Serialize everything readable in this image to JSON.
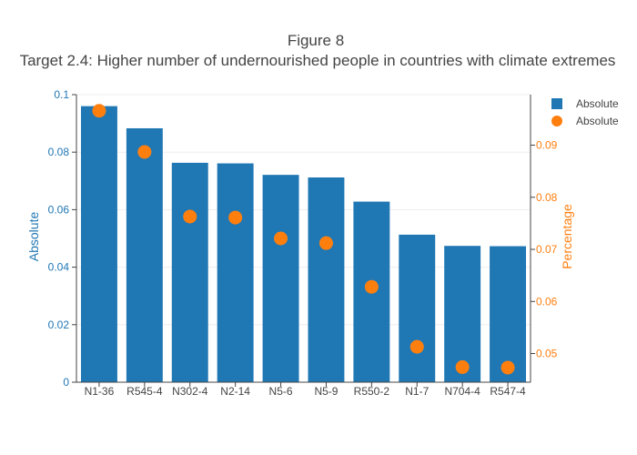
{
  "chart_data": {
    "type": "bar",
    "title": "Figure 8",
    "subtitle": "Target 2.4: Higher number of undernourished people in countries with climate extremes",
    "categories": [
      "N1-36",
      "R545-4",
      "N302-4",
      "N2-14",
      "N5-6",
      "N5-9",
      "R550-2",
      "N1-7",
      "N704-4",
      "R547-4"
    ],
    "series": [
      {
        "name": "Absolute",
        "type": "bar",
        "axis": "left",
        "color": "#1f77b4",
        "values": [
          0.096,
          0.0883,
          0.0763,
          0.0761,
          0.0721,
          0.0712,
          0.0628,
          0.0513,
          0.0474,
          0.0473
        ]
      },
      {
        "name": "Absolute",
        "type": "scatter",
        "axis": "right",
        "color": "#ff7f0e",
        "values": [
          0.0966,
          0.0887,
          0.0763,
          0.0761,
          0.0721,
          0.0712,
          0.0628,
          0.0513,
          0.0474,
          0.0473
        ]
      }
    ],
    "ylabel": "Absolute",
    "y2label": "Percentage",
    "ylim": [
      0,
      0.1
    ],
    "y2lim": [
      0.0445,
      0.0997
    ],
    "yticks": [
      "0",
      "0.02",
      "0.04",
      "0.06",
      "0.08",
      "0.1"
    ],
    "y2ticks": [
      "0.05",
      "0.06",
      "0.07",
      "0.08",
      "0.09"
    ],
    "grid": true,
    "legend": "top-right"
  }
}
